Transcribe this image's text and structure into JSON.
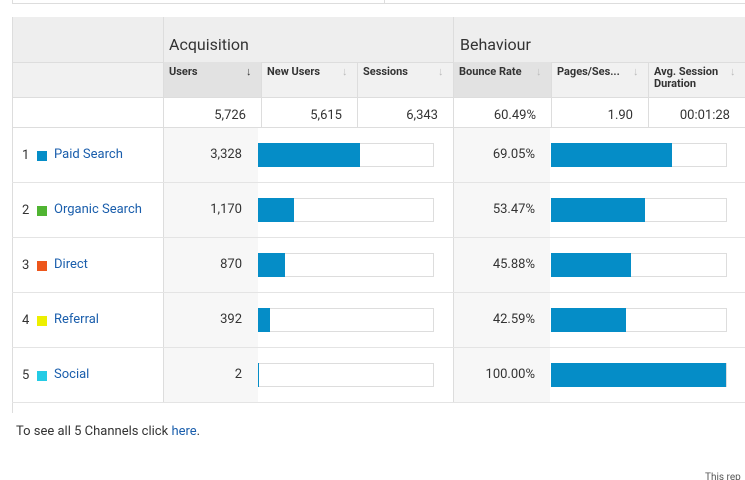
{
  "header": {
    "acquisition": "Acquisition",
    "behaviour": "Behaviour"
  },
  "columns": [
    "Users",
    "New Users",
    "Sessions",
    "Bounce Rate",
    "Pages/Ses...",
    "Avg. Session Duration"
  ],
  "sort_icon": "↓",
  "totals": [
    {
      "value": 5726,
      "label": "5,726"
    },
    {
      "value": 5615,
      "label": "5,615"
    },
    {
      "value": 6343,
      "label": "6,343"
    },
    {
      "value": 60.49,
      "label": "60.49%"
    },
    {
      "value": 1.9,
      "label": "1.90"
    },
    "00:01:28"
  ],
  "rows": [
    {
      "rank": "1",
      "channel": "Paid Search",
      "color": "#058dc7",
      "users": {
        "value": 3328,
        "label": "3,328"
      },
      "bounce_rate": {
        "value": 69.05,
        "label": "69.05%"
      }
    },
    {
      "rank": "2",
      "channel": "Organic Search",
      "color": "#50b432",
      "users": {
        "value": 1170,
        "label": "1,170"
      },
      "bounce_rate": {
        "value": 53.47,
        "label": "53.47%"
      }
    },
    {
      "rank": "3",
      "channel": "Direct",
      "color": "#ed561b",
      "users": {
        "value": 870,
        "label": "870"
      },
      "bounce_rate": {
        "value": 45.88,
        "label": "45.88%"
      }
    },
    {
      "rank": "4",
      "channel": "Referral",
      "color": "#edef00",
      "users": {
        "value": 392,
        "label": "392"
      },
      "bounce_rate": {
        "value": 42.59,
        "label": "42.59%"
      }
    },
    {
      "rank": "5",
      "channel": "Social",
      "color": "#24cbe5",
      "users": {
        "value": 2,
        "label": "2"
      },
      "bounce_rate": {
        "value": 100.0,
        "label": "100.00%"
      }
    }
  ],
  "bar_color": "#058dc7",
  "footer": {
    "text": "To see all 5 Channels click ",
    "link": "here",
    "end": ".",
    "note": "This rep"
  }
}
